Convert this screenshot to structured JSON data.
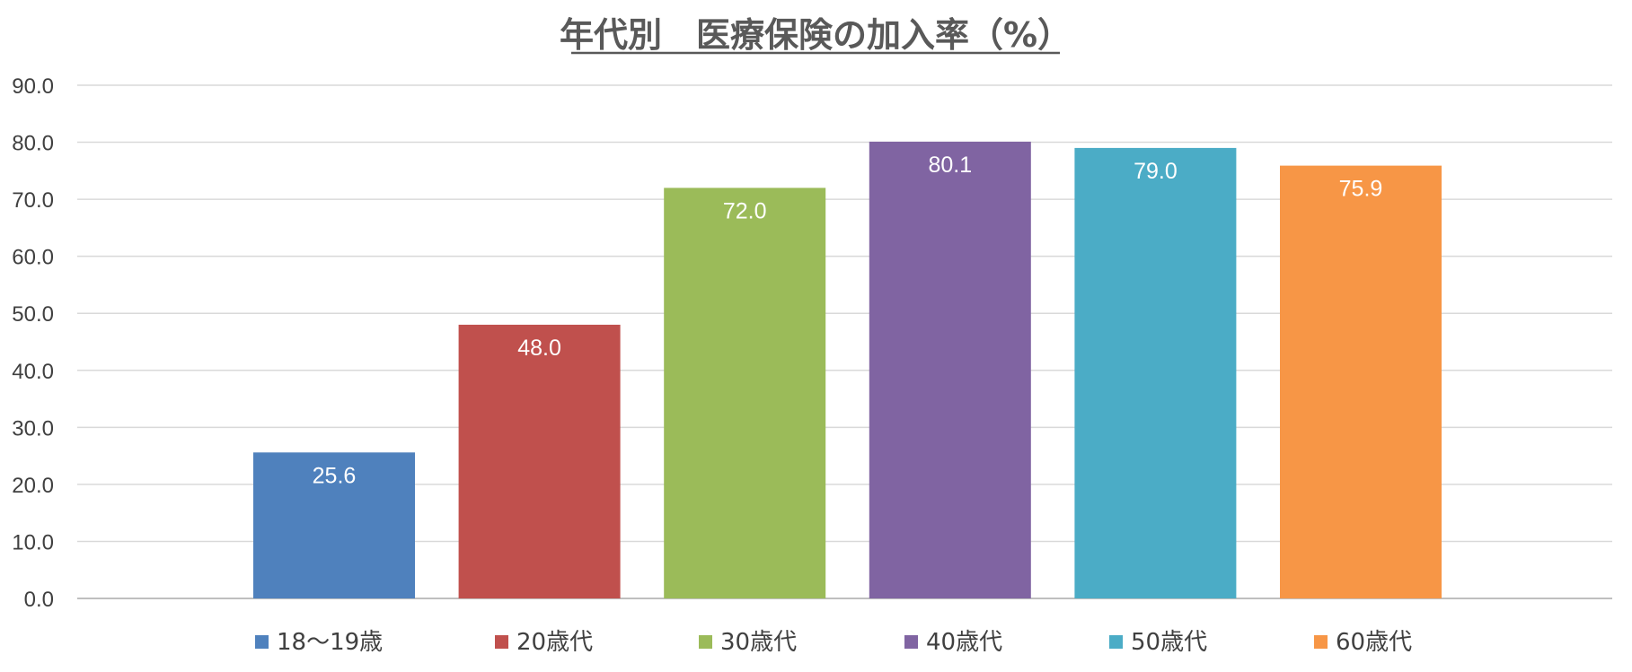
{
  "chart_data": {
    "type": "bar",
    "title": "年代別　医療保険の加入率（%）",
    "categories": [
      "18～19歳",
      "20歳代",
      "30歳代",
      "40歳代",
      "50歳代",
      "60歳代"
    ],
    "values": [
      25.6,
      48.0,
      72.0,
      80.1,
      79.0,
      75.9
    ],
    "value_labels": [
      "25.6",
      "48.0",
      "72.0",
      "80.1",
      "79.0",
      "75.9"
    ],
    "colors": [
      "#4f81bd",
      "#c0504d",
      "#9bbb59",
      "#8064a2",
      "#4bacc6",
      "#f79646"
    ],
    "ylim": [
      0,
      90
    ],
    "yticks": [
      "0.0",
      "10.0",
      "20.0",
      "30.0",
      "40.0",
      "50.0",
      "60.0",
      "70.0",
      "80.0",
      "90.0"
    ],
    "xlabel": "",
    "ylabel": "",
    "grid": true,
    "legend": "bottom"
  }
}
